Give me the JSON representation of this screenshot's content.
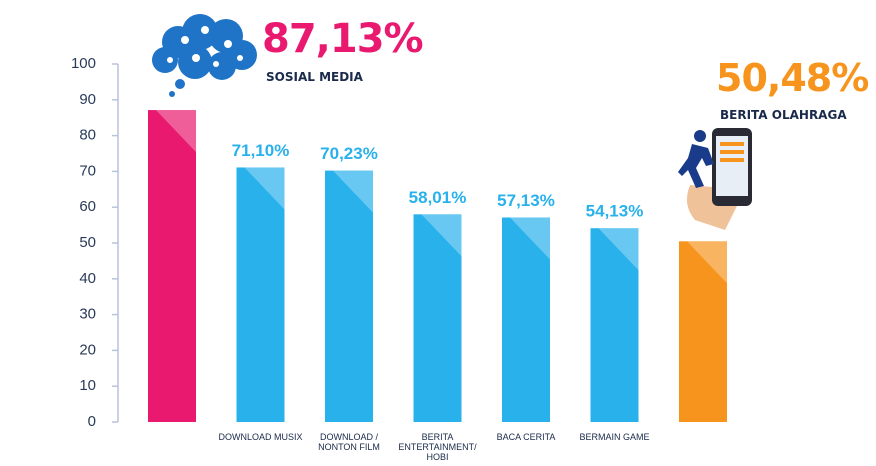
{
  "chart_data": {
    "type": "bar",
    "categories": [
      "SOSIAL MEDIA",
      "DOWNLOAD MUSIX",
      "DOWNLOAD / NONTON FILM",
      "BERITA ENTERTAINMENT/ HOBI",
      "BACA CERITA",
      "BERMAIN GAME",
      "BERITA OLAHRAGA"
    ],
    "values": [
      87.13,
      71.1,
      70.23,
      58.01,
      57.13,
      54.13,
      50.48
    ],
    "value_labels": [
      "87,13%",
      "71,10%",
      "70,23%",
      "58,01%",
      "57,13%",
      "54,13%",
      "50,48%"
    ],
    "colors": [
      "#e8196e",
      "#29b1ec",
      "#29b1ec",
      "#29b1ec",
      "#29b1ec",
      "#29b1ec",
      "#f7941d"
    ],
    "ylim": [
      0,
      100
    ],
    "yticks": [
      0,
      10,
      20,
      30,
      40,
      50,
      60,
      70,
      80,
      90,
      100
    ]
  }
}
